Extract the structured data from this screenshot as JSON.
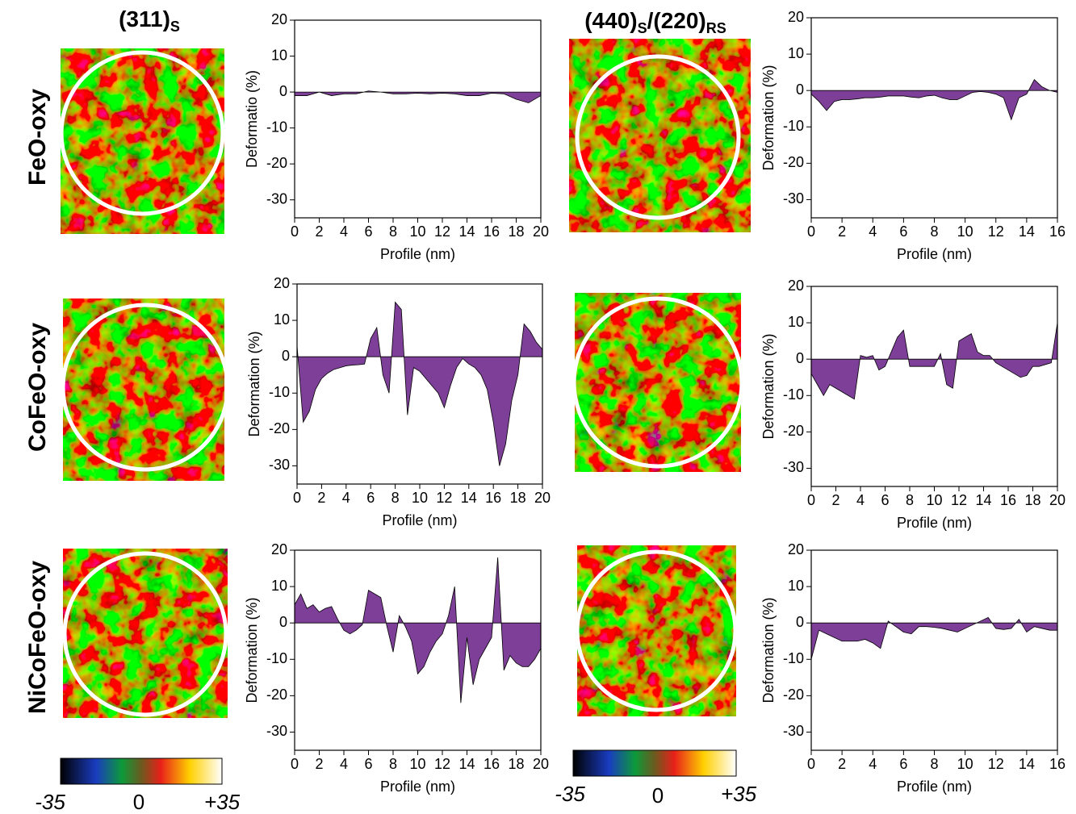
{
  "column_titles": [
    [
      "(311)",
      "S"
    ],
    [
      "(440)",
      "S",
      "/(220)",
      "RS"
    ]
  ],
  "row_labels": [
    "FeO-oxy",
    "CoFeO-oxy",
    "NiCoFeO-oxy"
  ],
  "colorbar_labels": [
    "-35",
    "0",
    "+35"
  ],
  "chart_data": [
    {
      "type": "area",
      "xlabel": "Profile (nm)",
      "ylabel": "Deformatio (%)",
      "color": "#7e3f98",
      "x": [
        0,
        1,
        2,
        3,
        4,
        5,
        6,
        7,
        8,
        9,
        10,
        11,
        12,
        13,
        14,
        15,
        16,
        17,
        18,
        19,
        20
      ],
      "values": [
        -1,
        -1,
        0,
        -1,
        -0.5,
        -0.5,
        0.3,
        0,
        -0.5,
        -0.5,
        -0.3,
        -0.5,
        -0.3,
        -0.5,
        -1,
        -1,
        -0.3,
        -0.5,
        -2,
        -3,
        -1
      ],
      "xlim": [
        0,
        20
      ],
      "ylim": [
        -35,
        20
      ],
      "xticks": [
        0,
        2,
        4,
        6,
        8,
        10,
        12,
        14,
        16,
        18,
        20
      ],
      "yticks": [
        -30,
        -20,
        -10,
        0,
        10,
        20
      ]
    },
    {
      "type": "area",
      "xlabel": "Profile (nm)",
      "ylabel": "Deformation (%)",
      "color": "#7e3f98",
      "x": [
        0,
        0.5,
        1,
        1.5,
        2,
        2.5,
        3,
        3.5,
        4,
        4.5,
        5,
        5.5,
        6,
        6.5,
        7,
        7.5,
        8,
        8.5,
        9,
        9.5,
        10,
        10.5,
        11,
        11.5,
        12,
        12.5,
        13,
        13.5,
        14,
        14.5,
        15,
        15.5,
        16
      ],
      "values": [
        -1,
        -3,
        -5.5,
        -3,
        -2.5,
        -2.5,
        -2.3,
        -2,
        -2,
        -1.8,
        -1.5,
        -1.5,
        -1.5,
        -1.8,
        -2,
        -1.5,
        -1.3,
        -2,
        -2.5,
        -2.5,
        -1.5,
        -0.5,
        -0.3,
        -0.5,
        -1,
        -2,
        -8,
        -2,
        -1,
        3,
        1,
        0,
        -0.5
      ],
      "xlim": [
        0,
        16
      ],
      "ylim": [
        -35,
        20
      ],
      "xticks": [
        0,
        2,
        4,
        6,
        8,
        10,
        12,
        14,
        16
      ],
      "yticks": [
        -30,
        -20,
        -10,
        0,
        10,
        20
      ]
    },
    {
      "type": "area",
      "xlabel": "Profile (nm)",
      "ylabel": "Deformation (%)",
      "color": "#7e3f98",
      "x": [
        0,
        0.5,
        1,
        1.5,
        2,
        2.5,
        3,
        3.5,
        4,
        4.5,
        5,
        5.5,
        6,
        6.5,
        7,
        7.5,
        8,
        8.5,
        9,
        9.5,
        10,
        10.5,
        11,
        11.5,
        12,
        12.5,
        13,
        13.5,
        14,
        14.5,
        15,
        15.5,
        16,
        16.5,
        17,
        17.5,
        18,
        18.5,
        19,
        19.5,
        20
      ],
      "values": [
        3,
        -18,
        -15,
        -9,
        -6,
        -4.5,
        -3.5,
        -3,
        -2.5,
        -2.3,
        -2.2,
        -2,
        5,
        8,
        -5,
        -10,
        15,
        13,
        -16,
        -3,
        -4,
        -6,
        -8,
        -10,
        -14,
        -8,
        -3,
        -0.5,
        -2,
        -3,
        -5,
        -9,
        -18,
        -30,
        -24,
        -12,
        -5,
        9,
        7,
        4,
        2
      ],
      "xlim": [
        0,
        20
      ],
      "ylim": [
        -35,
        20
      ],
      "xticks": [
        0,
        2,
        4,
        6,
        8,
        10,
        12,
        14,
        16,
        18,
        20
      ],
      "yticks": [
        -30,
        -20,
        -10,
        0,
        10,
        20
      ]
    },
    {
      "type": "area",
      "xlabel": "Profile (nm)",
      "ylabel": "Deformation (%)",
      "color": "#7e3f98",
      "x": [
        0,
        0.5,
        1,
        1.5,
        2,
        2.5,
        3,
        3.5,
        4,
        4.5,
        5,
        5.5,
        6,
        6.5,
        7,
        7.5,
        8,
        8.5,
        9,
        9.5,
        10,
        10.5,
        11,
        11.5,
        12,
        12.5,
        13,
        13.5,
        14,
        14.5,
        15,
        15.5,
        16,
        16.5,
        17,
        17.5,
        18,
        18.5,
        19,
        19.5,
        20
      ],
      "values": [
        -4,
        -7,
        -10,
        -7,
        -8,
        -9,
        -10,
        -11,
        1,
        0.5,
        1,
        -3,
        -2,
        2,
        6,
        8,
        -2,
        -2,
        -2,
        -2,
        -2,
        1.5,
        -7,
        -8,
        5,
        6,
        7,
        2,
        1,
        1,
        -1,
        -2,
        -3,
        -4,
        -5,
        -4.5,
        -2,
        -2,
        -1.5,
        -1,
        10
      ],
      "xlim": [
        0,
        20
      ],
      "ylim": [
        -35,
        20
      ],
      "xticks": [
        0,
        2,
        4,
        6,
        8,
        10,
        12,
        14,
        16,
        18,
        20
      ],
      "yticks": [
        -30,
        -20,
        -10,
        0,
        10,
        20
      ]
    },
    {
      "type": "area",
      "xlabel": "Profile (nm)",
      "ylabel": "Deformation (%)",
      "color": "#7e3f98",
      "x": [
        0,
        0.5,
        1,
        1.5,
        2,
        2.5,
        3,
        3.5,
        4,
        4.5,
        5,
        5.5,
        6,
        6.5,
        7,
        7.5,
        8,
        8.5,
        9,
        9.5,
        10,
        10.5,
        11,
        11.5,
        12,
        12.5,
        13,
        13.5,
        14,
        14.5,
        15,
        15.5,
        16,
        16.5,
        17,
        17.5,
        18,
        18.5,
        19,
        19.5,
        20
      ],
      "values": [
        5,
        8,
        4,
        5,
        3,
        4,
        4.5,
        1,
        -2,
        -3,
        -2,
        -0.5,
        9,
        8,
        7,
        -1,
        -8,
        2,
        -1,
        -5,
        -14,
        -12,
        -8,
        -5,
        -3,
        2,
        10,
        -22,
        -4,
        -17,
        -10,
        -7,
        -4,
        18,
        -13,
        -9,
        -11,
        -12,
        -12,
        -10,
        -7
      ],
      "xlim": [
        0,
        20
      ],
      "ylim": [
        -35,
        20
      ],
      "xticks": [
        0,
        2,
        4,
        6,
        8,
        10,
        12,
        14,
        16,
        18,
        20
      ],
      "yticks": [
        -30,
        -20,
        -10,
        0,
        10,
        20
      ]
    },
    {
      "type": "area",
      "xlabel": "Profile (nm)",
      "ylabel": "Deformation (%)",
      "color": "#7e3f98",
      "x": [
        0,
        0.5,
        1,
        1.5,
        2,
        2.5,
        3,
        3.5,
        4,
        4.5,
        5,
        5.5,
        6,
        6.5,
        7,
        7.5,
        8,
        8.5,
        9,
        9.5,
        10,
        10.5,
        11,
        11.5,
        12,
        12.5,
        13,
        13.5,
        14,
        14.5,
        15,
        15.5,
        16
      ],
      "values": [
        -10,
        -2,
        -3,
        -4,
        -5,
        -5,
        -5,
        -4.5,
        -5.5,
        -7,
        0.5,
        -1,
        -2.5,
        -3,
        -1,
        -1,
        -1.2,
        -1.5,
        -2,
        -2.5,
        -1.5,
        -0.5,
        0.5,
        1.5,
        -1.5,
        -1.8,
        -1.5,
        1,
        -2.5,
        -1,
        -1.5,
        -2,
        -2
      ],
      "xlim": [
        0,
        16
      ],
      "ylim": [
        -35,
        20
      ],
      "xticks": [
        0,
        2,
        4,
        6,
        8,
        10,
        12,
        14,
        16
      ],
      "yticks": [
        -30,
        -20,
        -10,
        0,
        10,
        20
      ]
    }
  ]
}
